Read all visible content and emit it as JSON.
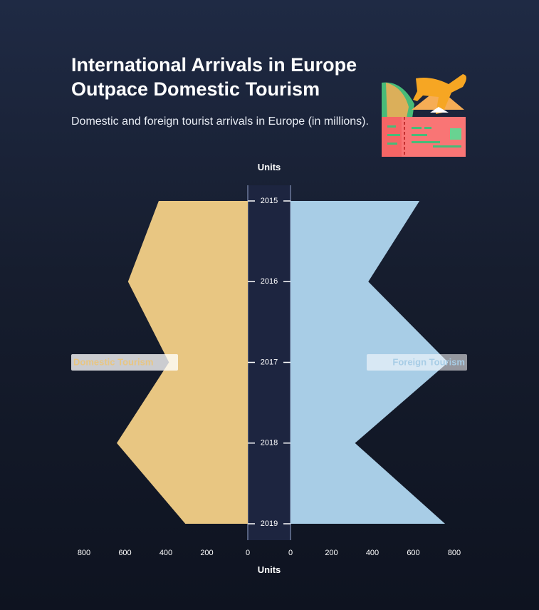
{
  "header": {
    "title": "International Arrivals in Europe Outpace Domestic Tourism",
    "subtitle": "Domestic and foreign tourist arrivals in Europe (in millions)."
  },
  "illustration": {
    "icon": "travel-ticket-airplane-icon"
  },
  "chart_data": {
    "type": "area",
    "layout": "butterfly",
    "categories": [
      "2015",
      "2016",
      "2017",
      "2018",
      "2019"
    ],
    "axis_title_top": "Units",
    "axis_title_bottom": "Units",
    "xlim": [
      0,
      800
    ],
    "ticks": [
      0,
      200,
      400,
      600,
      800
    ],
    "series": [
      {
        "name": "Domestic Tourism",
        "side": "left",
        "color": "#e8c682",
        "values": [
          435,
          585,
          385,
          640,
          305
        ]
      },
      {
        "name": "Foreign Tourism",
        "side": "right",
        "color": "#a8cde6",
        "values": [
          630,
          380,
          770,
          315,
          755
        ]
      }
    ],
    "center_band_color": "#1d2540"
  }
}
